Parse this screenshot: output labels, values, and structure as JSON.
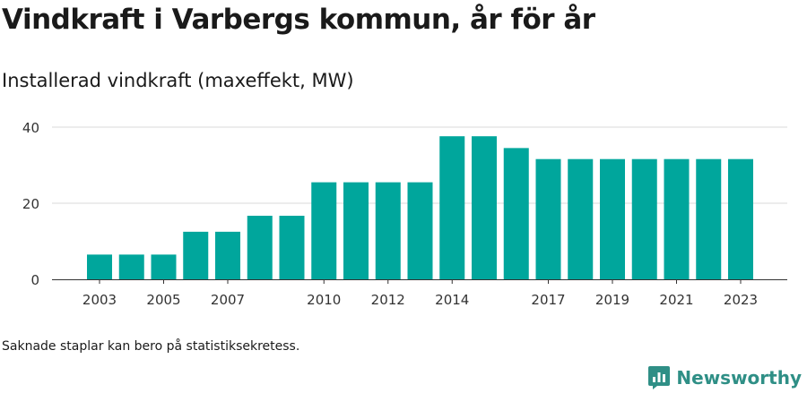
{
  "header": {
    "title": "Vindkraft i Varbergs kommun, år för år",
    "subtitle": "Installerad vindkraft (maxeffekt, MW)"
  },
  "chart_data": {
    "type": "bar",
    "x": [
      2003,
      2004,
      2005,
      2006,
      2007,
      2008,
      2009,
      2010,
      2011,
      2012,
      2013,
      2014,
      2015,
      2016,
      2017,
      2018,
      2019,
      2020,
      2021,
      2022,
      2023
    ],
    "values": [
      6.5,
      6.5,
      6.5,
      12.5,
      12.5,
      16.7,
      16.7,
      25.5,
      25.5,
      25.5,
      25.5,
      37.6,
      37.6,
      34.5,
      31.6,
      31.6,
      31.6,
      31.6,
      31.6,
      31.6,
      31.6
    ],
    "x_tick_labels": [
      "2003",
      "2005",
      "2007",
      "2010",
      "2012",
      "2014",
      "2017",
      "2019",
      "2021",
      "2023"
    ],
    "y_tick_labels": [
      "0",
      "20",
      "40"
    ],
    "ylim": [
      0,
      40
    ],
    "grid": true,
    "legend": "none",
    "bar_color": "#00a69c"
  },
  "footer": {
    "note": "Saknade staplar kan bero på statistiksekretess.",
    "brand": "Newsworthy",
    "brand_color": "#2f8f86"
  }
}
